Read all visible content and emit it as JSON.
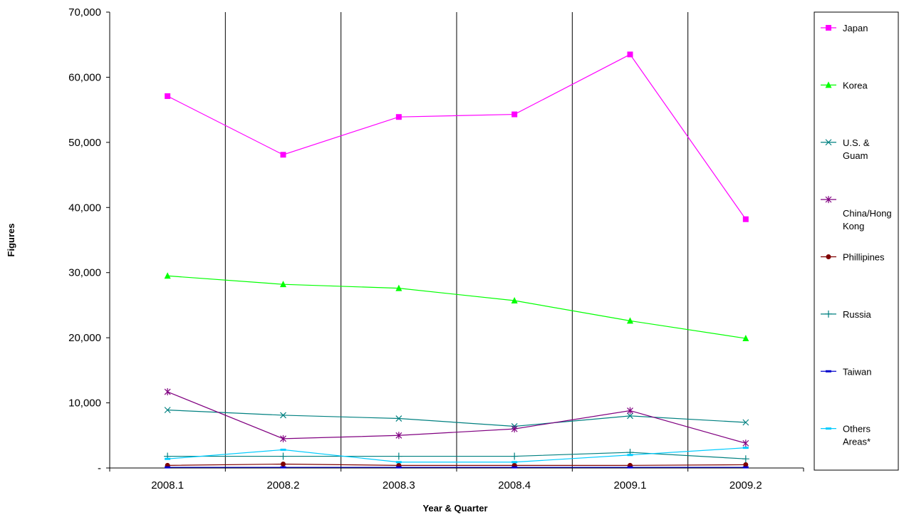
{
  "chart_data": {
    "type": "line",
    "title": "",
    "xlabel": "Year & Quarter",
    "ylabel": "Figures",
    "categories": [
      "2008.1",
      "2008.2",
      "2008.3",
      "2008.4",
      "2009.1",
      "2009.2"
    ],
    "ylim": [
      0,
      70000
    ],
    "yticks": [
      0,
      10000,
      20000,
      30000,
      40000,
      50000,
      60000,
      70000
    ],
    "ytick_labels": [
      "-",
      "10,000",
      "20,000",
      "30,000",
      "40,000",
      "50,000",
      "60,000",
      "70,000"
    ],
    "grid": "vertical",
    "legend_position": "right",
    "series": [
      {
        "name": "Japan",
        "color": "#FF00FF",
        "marker": "square",
        "values": [
          57100,
          48100,
          53900,
          54300,
          63500,
          38200
        ]
      },
      {
        "name": "Korea",
        "color": "#00FF00",
        "marker": "triangle",
        "values": [
          29500,
          28200,
          27600,
          25700,
          22600,
          19900
        ]
      },
      {
        "name": "U.S. & Guam",
        "color": "#008080",
        "marker": "x",
        "values": [
          8900,
          8100,
          7600,
          6400,
          8000,
          7000
        ]
      },
      {
        "name": "China/Hong Kong",
        "color": "#800080",
        "marker": "star",
        "values": [
          11700,
          4500,
          5000,
          6000,
          8800,
          3800
        ]
      },
      {
        "name": "Phillipines",
        "color": "#800000",
        "marker": "circle",
        "values": [
          400,
          600,
          400,
          400,
          400,
          500
        ]
      },
      {
        "name": "Russia",
        "color": "#008080",
        "marker": "plus",
        "values": [
          1800,
          1800,
          1800,
          1800,
          2400,
          1400
        ]
      },
      {
        "name": "Taiwan",
        "color": "#0000CC",
        "marker": "dash",
        "values": [
          100,
          100,
          100,
          100,
          100,
          100
        ]
      },
      {
        "name": "Others Areas*",
        "color": "#00CCFF",
        "marker": "dash",
        "values": [
          1400,
          2800,
          900,
          900,
          2000,
          3100
        ]
      }
    ]
  }
}
